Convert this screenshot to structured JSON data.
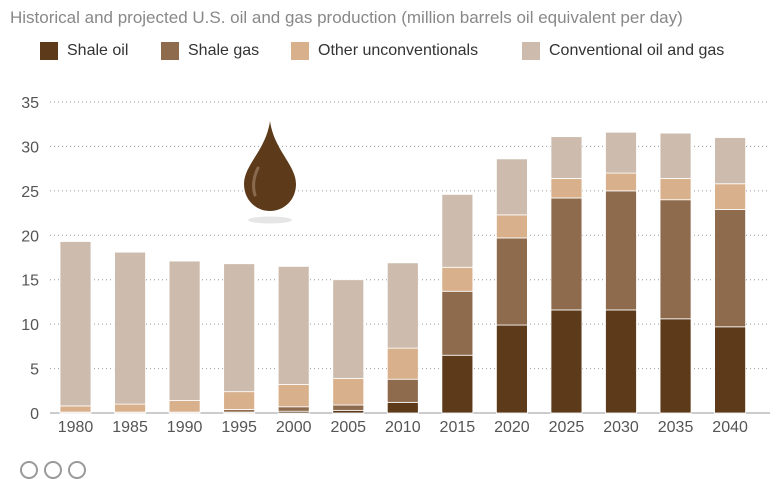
{
  "subtitle": "Historical and projected U.S. oil and gas production (million barrels oil equivalent per day)",
  "chart_data": {
    "type": "bar",
    "stacked": true,
    "title": "",
    "subtitle": "Historical and projected U.S. oil and gas production (million barrels oil equivalent per day)",
    "xlabel": "",
    "ylabel": "",
    "ylim": [
      0,
      35
    ],
    "yticks": [
      0,
      5,
      10,
      15,
      20,
      25,
      30,
      35
    ],
    "grid": true,
    "legend_position": "top",
    "categories": [
      "1980",
      "1985",
      "1990",
      "1995",
      "2000",
      "2005",
      "2010",
      "2015",
      "2020",
      "2025",
      "2030",
      "2035",
      "2040"
    ],
    "series": [
      {
        "name": "Shale oil",
        "color": "#5d3b1a",
        "values": [
          0,
          0,
          0,
          0.1,
          0.2,
          0.3,
          1.2,
          6.5,
          9.9,
          11.6,
          11.6,
          10.6,
          9.7
        ]
      },
      {
        "name": "Shale gas",
        "color": "#8f6b4e",
        "values": [
          0.1,
          0.1,
          0.1,
          0.3,
          0.5,
          0.6,
          2.6,
          7.2,
          9.8,
          12.6,
          13.4,
          13.4,
          13.2
        ]
      },
      {
        "name": "Other unconventionals",
        "color": "#d9b08c",
        "values": [
          0.7,
          0.9,
          1.3,
          2.0,
          2.5,
          3.0,
          3.5,
          2.7,
          2.6,
          2.2,
          2.0,
          2.4,
          2.9
        ]
      },
      {
        "name": "Conventional oil and gas",
        "color": "#cdbcad",
        "values": [
          18.5,
          17.1,
          15.7,
          14.4,
          13.3,
          11.1,
          9.6,
          8.2,
          6.3,
          4.7,
          4.6,
          5.1,
          5.2
        ]
      }
    ]
  }
}
